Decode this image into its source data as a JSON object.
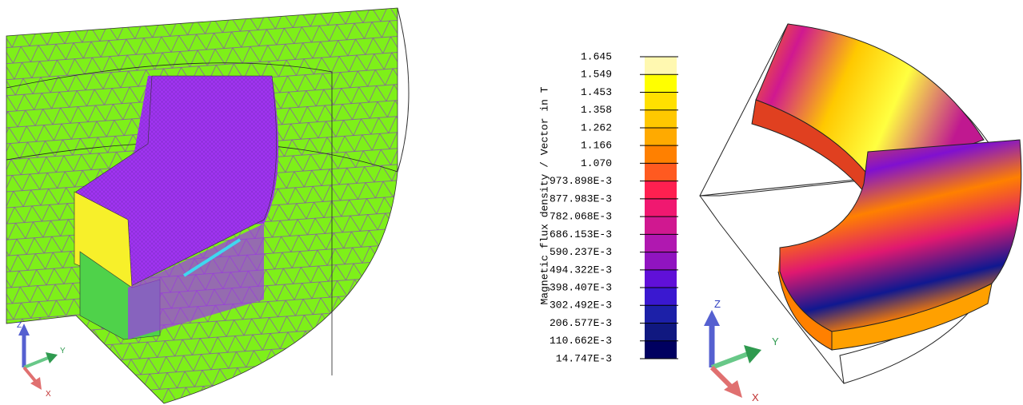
{
  "colorbar": {
    "title": "Magnetic flux density / Vector in T",
    "labels": [
      "1.645",
      "1.549",
      "1.453",
      "1.358",
      "1.262",
      "1.166",
      "1.070",
      "973.898E-3",
      "877.983E-3",
      "782.068E-3",
      "686.153E-3",
      "590.237E-3",
      "494.322E-3",
      "398.407E-3",
      "302.492E-3",
      "206.577E-3",
      "110.662E-3",
      "14.747E-3"
    ]
  },
  "left_triad": {
    "z": "Z",
    "y": "Y",
    "x": "X"
  },
  "right_triad": {
    "z": "Z",
    "y": "Y",
    "x": "X"
  }
}
